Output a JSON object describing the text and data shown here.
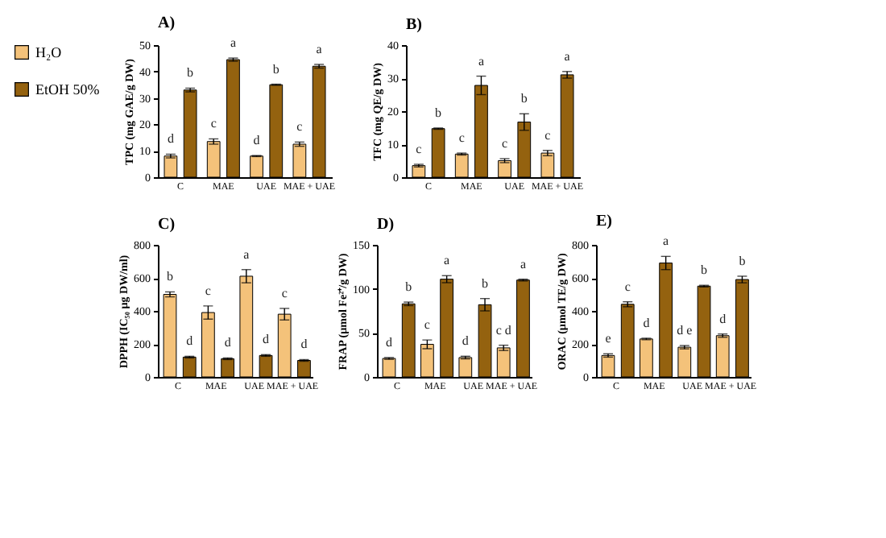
{
  "chart_data": [
    {
      "type": "bar",
      "title": "A)",
      "ylabel": "TPC (mg GAE/g DW)",
      "categories": [
        "C",
        "MAE",
        "UAE",
        "MAE + UAE"
      ],
      "ylim": [
        0,
        50
      ],
      "yticks": [
        0,
        10,
        20,
        30,
        40,
        50
      ],
      "legend": "left",
      "series": [
        {
          "name": "H₂O",
          "color": "#f4c27a",
          "values": [
            8,
            13.5,
            8,
            12.5
          ],
          "errors": [
            0.7,
            1,
            0.2,
            0.8
          ]
        },
        {
          "name": "EtOH 50%",
          "color": "#94620f",
          "values": [
            33,
            44.5,
            35,
            42
          ],
          "errors": [
            0.7,
            0.6,
            0.2,
            0.7
          ]
        }
      ],
      "annotations": [
        {
          "text": "d",
          "x": "C",
          "y": 8
        },
        {
          "text": "c",
          "x": "MAE",
          "y": 13.5
        },
        {
          "text": "d",
          "x": "UAE",
          "y": 8
        },
        {
          "text": "c",
          "x": "MAE + UAE",
          "y": 12.5
        },
        {
          "text": "b",
          "x": "C",
          "y": 33
        },
        {
          "text": "a",
          "x": "MAE",
          "y": 44.5
        },
        {
          "text": "b",
          "x": "UAE",
          "y": 35
        },
        {
          "text": "a",
          "x": "MAE + UAE",
          "y": 42
        }
      ]
    },
    {
      "type": "bar",
      "title": "B)",
      "ylabel": "TFC (mg QE/g DW)",
      "categories": [
        "C",
        "MAE",
        "UAE",
        "MAE + UAE"
      ],
      "ylim": [
        0,
        40
      ],
      "yticks": [
        0,
        10,
        20,
        30,
        40
      ],
      "series": [
        {
          "name": "H₂O",
          "color": "#f4c27a",
          "values": [
            3.5,
            7,
            5,
            7.3
          ],
          "errors": [
            0.4,
            0.3,
            0.6,
            0.8
          ]
        },
        {
          "name": "EtOH 50%",
          "color": "#94620f",
          "values": [
            14.7,
            27.8,
            16.7,
            31
          ],
          "errors": [
            0.2,
            2.8,
            2.5,
            1
          ]
        }
      ],
      "annotations": [
        {
          "text": "c",
          "x": "C",
          "y": 3.5
        },
        {
          "text": "c",
          "x": "MAE",
          "y": 7
        },
        {
          "text": "c",
          "x": "UAE",
          "y": 5
        },
        {
          "text": "c",
          "x": "MAE + UAE",
          "y": 7.3
        },
        {
          "text": "b",
          "x": "C",
          "y": 14.7
        },
        {
          "text": "a",
          "x": "MAE",
          "y": 27.8
        },
        {
          "text": "b",
          "x": "UAE",
          "y": 16.7
        },
        {
          "text": "a",
          "x": "MAE + UAE",
          "y": 31
        }
      ]
    },
    {
      "type": "bar",
      "title": "C)",
      "ylabel": "DPPH (IC₅₀ µg DW/ml)",
      "categories": [
        "C",
        "MAE",
        "UAE",
        "MAE + UAE"
      ],
      "ylim": [
        0,
        800
      ],
      "yticks": [
        0,
        200,
        400,
        600,
        800
      ],
      "series": [
        {
          "name": "H₂O",
          "color": "#f4c27a",
          "values": [
            500,
            390,
            610,
            380
          ],
          "errors": [
            15,
            40,
            40,
            35
          ]
        },
        {
          "name": "EtOH 50%",
          "color": "#94620f",
          "values": [
            120,
            110,
            130,
            100
          ],
          "errors": [
            5,
            5,
            5,
            5
          ]
        }
      ],
      "annotations": [
        {
          "text": "b",
          "x": "C",
          "y": 500
        },
        {
          "text": "c",
          "x": "MAE",
          "y": 390
        },
        {
          "text": "a",
          "x": "UAE",
          "y": 610
        },
        {
          "text": "c",
          "x": "MAE + UAE",
          "y": 380
        },
        {
          "text": "d",
          "x": "C",
          "y": 120
        },
        {
          "text": "d",
          "x": "MAE",
          "y": 110
        },
        {
          "text": "d",
          "x": "UAE",
          "y": 130
        },
        {
          "text": "d",
          "x": "MAE + UAE",
          "y": 100
        }
      ]
    },
    {
      "type": "bar",
      "title": "D)",
      "ylabel": "FRAP (µmol Fe²⁺/g DW)",
      "categories": [
        "C",
        "MAE",
        "UAE",
        "MAE + UAE"
      ],
      "ylim": [
        0,
        150
      ],
      "yticks": [
        0,
        50,
        100,
        150
      ],
      "series": [
        {
          "name": "H₂O",
          "color": "#f4c27a",
          "values": [
            21,
            37,
            22,
            33
          ],
          "errors": [
            1,
            5,
            1.5,
            3
          ]
        },
        {
          "name": "EtOH 50%",
          "color": "#94620f",
          "values": [
            83,
            111,
            82,
            110
          ],
          "errors": [
            2,
            4,
            7,
            1
          ]
        }
      ],
      "annotations": [
        {
          "text": "d",
          "x": "C",
          "y": 21
        },
        {
          "text": "c",
          "x": "MAE",
          "y": 37
        },
        {
          "text": "d",
          "x": "UAE",
          "y": 22
        },
        {
          "text": "c d",
          "x": "MAE + UAE",
          "y": 33
        },
        {
          "text": "b",
          "x": "C",
          "y": 83
        },
        {
          "text": "a",
          "x": "MAE",
          "y": 111
        },
        {
          "text": "b",
          "x": "UAE",
          "y": 82
        },
        {
          "text": "a",
          "x": "MAE + UAE",
          "y": 110
        }
      ]
    },
    {
      "type": "bar",
      "title": "E)",
      "ylabel": "ORAC (µmol TE/g DW)",
      "categories": [
        "C",
        "MAE",
        "UAE",
        "MAE + UAE"
      ],
      "ylim": [
        0,
        800
      ],
      "yticks": [
        0,
        200,
        400,
        600,
        800
      ],
      "series": [
        {
          "name": "H₂O",
          "color": "#f4c27a",
          "values": [
            130,
            230,
            180,
            250
          ],
          "errors": [
            10,
            5,
            10,
            10
          ]
        },
        {
          "name": "EtOH 50%",
          "color": "#94620f",
          "values": [
            440,
            690,
            550,
            590
          ],
          "errors": [
            15,
            40,
            5,
            20
          ]
        }
      ],
      "annotations": [
        {
          "text": "e",
          "x": "C",
          "y": 130
        },
        {
          "text": "d",
          "x": "MAE",
          "y": 230
        },
        {
          "text": "d e",
          "x": "UAE",
          "y": 180
        },
        {
          "text": "d",
          "x": "MAE + UAE",
          "y": 250
        },
        {
          "text": "c",
          "x": "C",
          "y": 440
        },
        {
          "text": "a",
          "x": "MAE",
          "y": 690
        },
        {
          "text": "b",
          "x": "UAE",
          "y": 550
        },
        {
          "text": "b",
          "x": "MAE + UAE",
          "y": 590
        }
      ]
    }
  ]
}
